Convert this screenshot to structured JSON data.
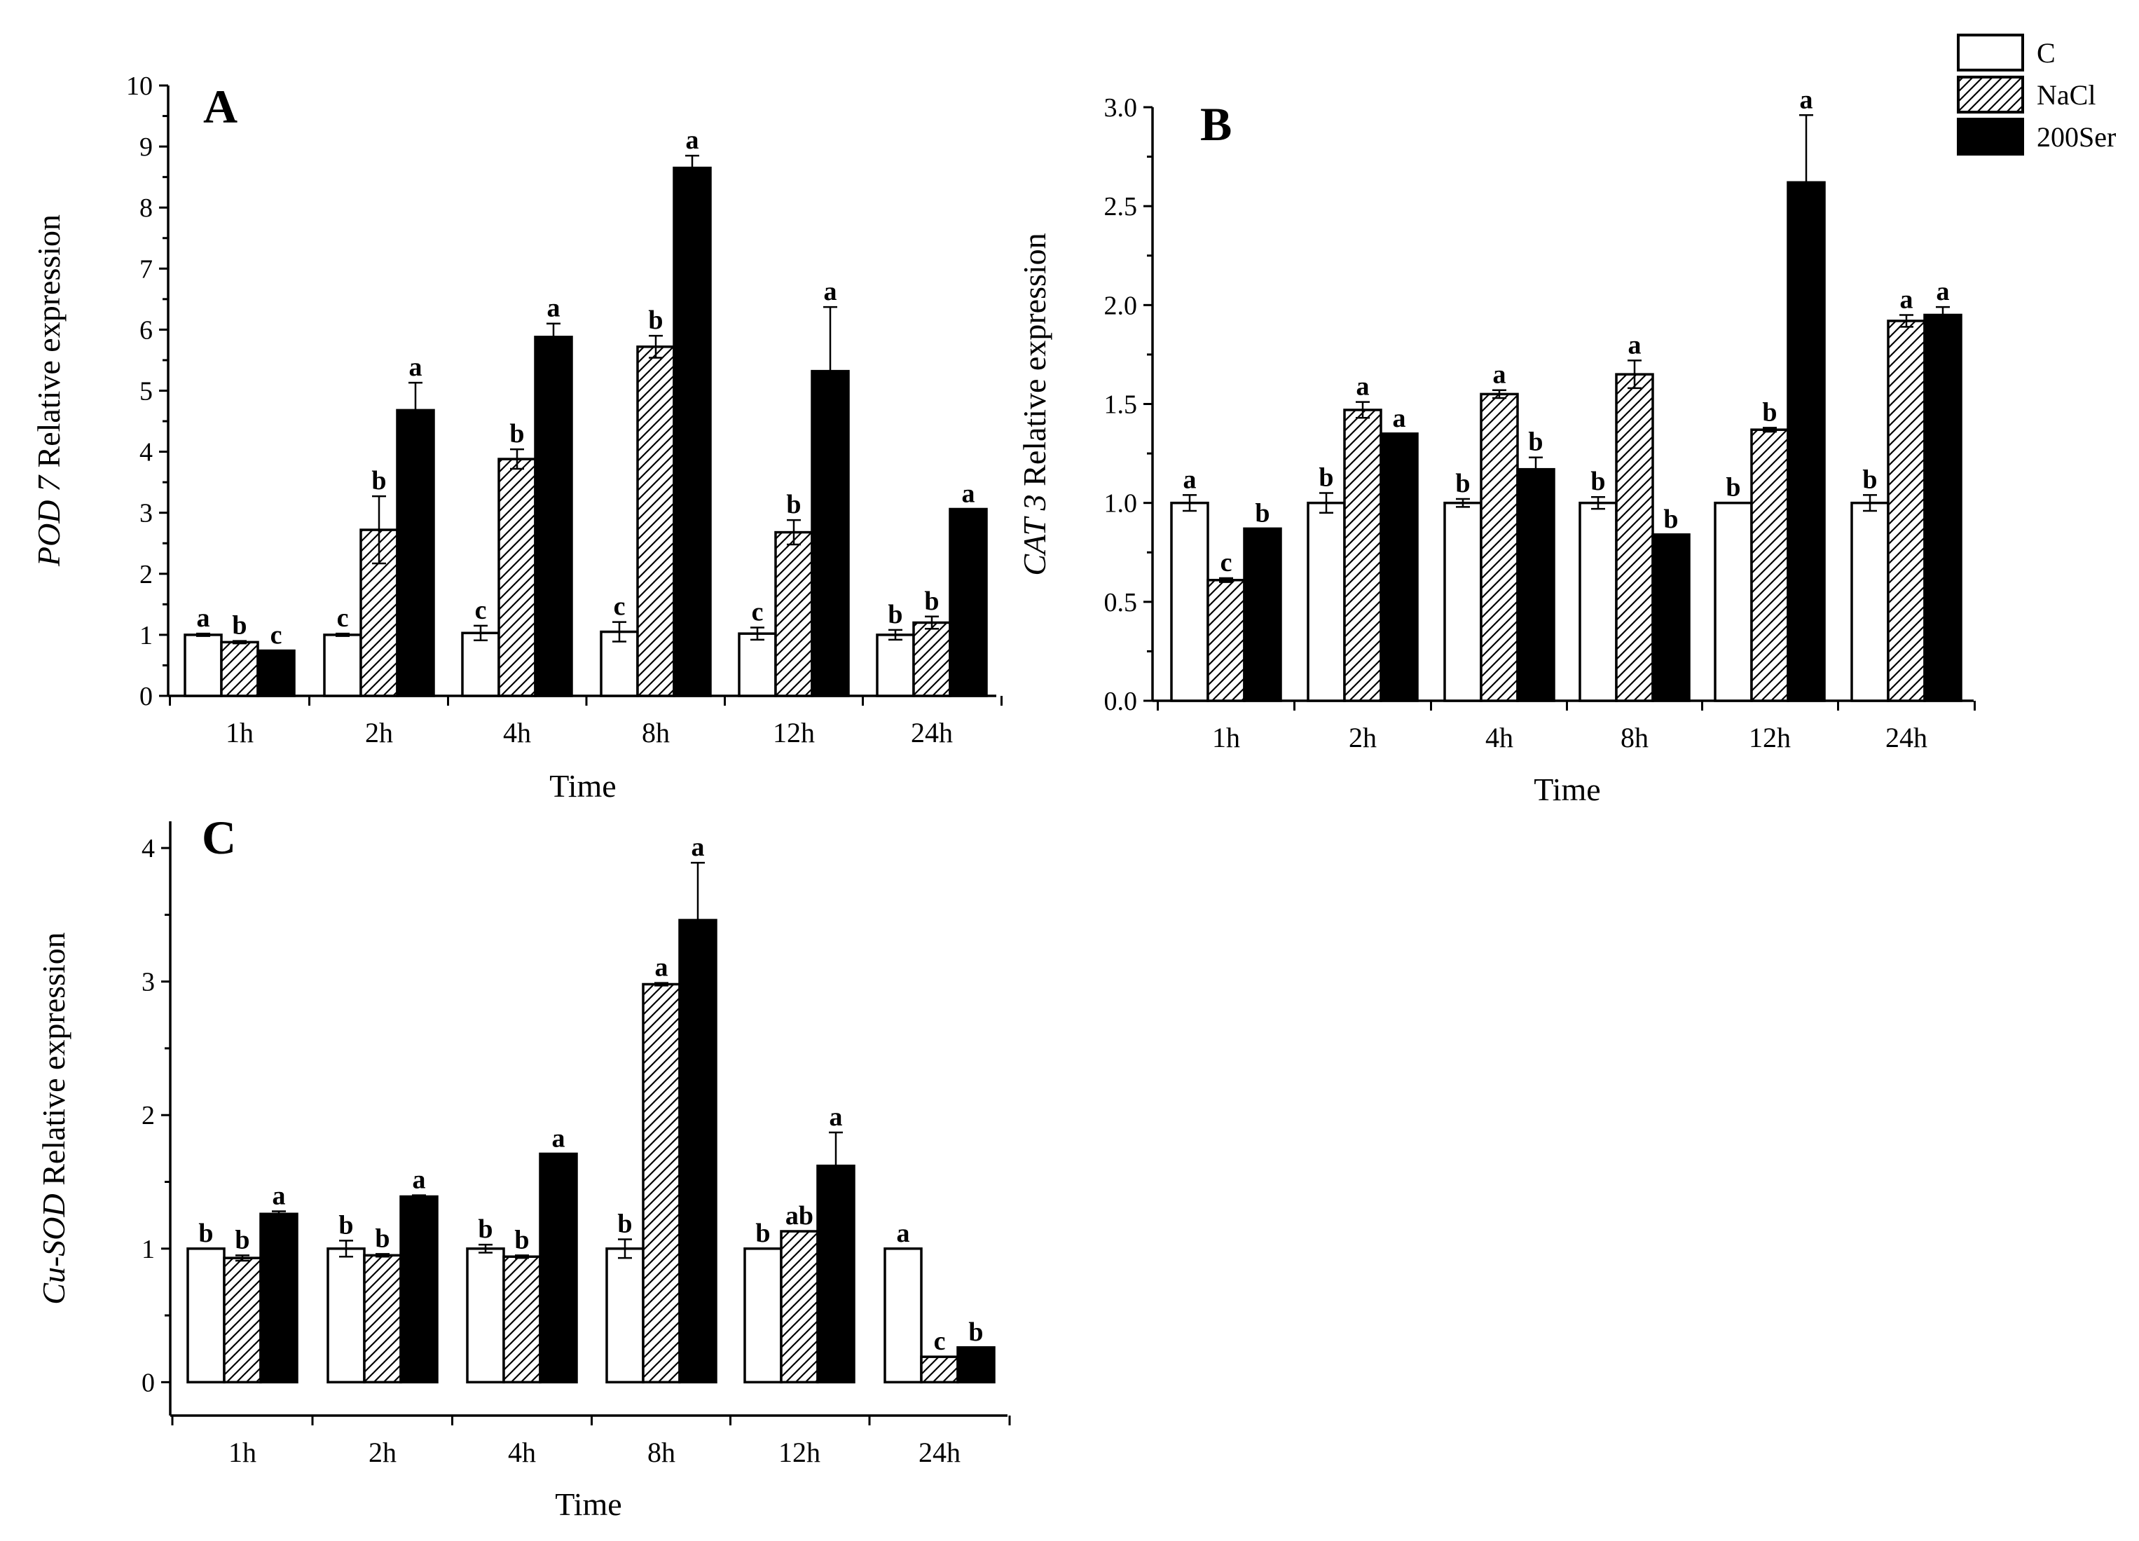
{
  "chart_data": {
    "type": "bar",
    "legend": {
      "position": "top-right",
      "entries": [
        {
          "name": "C",
          "pattern": "white",
          "color": "#ffffff"
        },
        {
          "name": "NaCl",
          "pattern": "hatched",
          "color": "#ffffff"
        },
        {
          "name": "200Ser",
          "pattern": "solid",
          "color": "#000000"
        }
      ]
    },
    "panels": [
      {
        "id": "A",
        "label": "A",
        "gene": "POD 7",
        "ylabel_suffix": " Relative expression",
        "xlabel": "Time",
        "categories": [
          "1h",
          "2h",
          "4h",
          "8h",
          "12h",
          "24h"
        ],
        "ylim": [
          0,
          10
        ],
        "yticks": [
          "0",
          "1",
          "2",
          "3",
          "4",
          "5",
          "6",
          "7",
          "8",
          "9",
          "10"
        ],
        "series": [
          {
            "name": "C",
            "values": [
              1.0,
              1.0,
              1.03,
              1.05,
              1.02,
              1.0
            ],
            "errors": [
              0.02,
              0.02,
              0.12,
              0.16,
              0.1,
              0.08
            ],
            "labels": [
              "a",
              "c",
              "c",
              "c",
              "c",
              "b"
            ]
          },
          {
            "name": "NaCl",
            "values": [
              0.88,
              2.72,
              3.88,
              5.72,
              2.68,
              1.2
            ],
            "errors": [
              0.02,
              0.55,
              0.16,
              0.18,
              0.2,
              0.1
            ],
            "labels": [
              "b",
              "b",
              "b",
              "b",
              "b",
              "b"
            ]
          },
          {
            "name": "200Ser",
            "values": [
              0.74,
              4.68,
              5.88,
              8.65,
              5.32,
              3.06
            ],
            "errors": [
              0.0,
              0.45,
              0.22,
              0.2,
              1.05,
              0.0
            ],
            "labels": [
              "c",
              "a",
              "a",
              "a",
              "a",
              "a"
            ]
          }
        ]
      },
      {
        "id": "B",
        "label": "B",
        "gene": "CAT 3",
        "ylabel_suffix": " Relative expression",
        "xlabel": "Time",
        "categories": [
          "1h",
          "2h",
          "4h",
          "8h",
          "12h",
          "24h"
        ],
        "ylim": [
          0,
          3.0
        ],
        "yticks": [
          "0.0",
          "0.5",
          "1.0",
          "1.5",
          "2.0",
          "2.5",
          "3.0"
        ],
        "series": [
          {
            "name": "C",
            "values": [
              1.0,
              1.0,
              1.0,
              1.0,
              1.0,
              1.0
            ],
            "errors": [
              0.04,
              0.05,
              0.02,
              0.03,
              0.0,
              0.04
            ],
            "labels": [
              "a",
              "b",
              "b",
              "b",
              "b",
              "b"
            ]
          },
          {
            "name": "NaCl",
            "values": [
              0.61,
              1.47,
              1.55,
              1.65,
              1.37,
              1.92
            ],
            "errors": [
              0.01,
              0.04,
              0.02,
              0.07,
              0.01,
              0.03
            ],
            "labels": [
              "c",
              "a",
              "a",
              "a",
              "b",
              "a"
            ]
          },
          {
            "name": "200Ser",
            "values": [
              0.87,
              1.35,
              1.17,
              0.84,
              2.62,
              1.95
            ],
            "errors": [
              0.0,
              0.0,
              0.06,
              0.0,
              0.34,
              0.04
            ],
            "labels": [
              "b",
              "a",
              "b",
              "b",
              "a",
              "a"
            ]
          }
        ]
      },
      {
        "id": "C",
        "label": "C",
        "gene": "Cu-SOD",
        "ylabel_suffix": " Relative expression",
        "xlabel": "Time",
        "categories": [
          "1h",
          "2h",
          "4h",
          "8h",
          "12h",
          "24h"
        ],
        "ylim": [
          -0.25,
          4.2
        ],
        "yticks": [
          "0",
          "1",
          "2",
          "3",
          "4"
        ],
        "series": [
          {
            "name": "C",
            "values": [
              1.0,
              1.0,
              1.0,
              1.0,
              1.0,
              1.0
            ],
            "errors": [
              0.0,
              0.06,
              0.03,
              0.07,
              0.0,
              0.0
            ],
            "labels": [
              "b",
              "b",
              "b",
              "b",
              "b",
              "a"
            ]
          },
          {
            "name": "NaCl",
            "values": [
              0.93,
              0.95,
              0.94,
              2.98,
              1.13,
              0.19
            ],
            "errors": [
              0.02,
              0.01,
              0.01,
              0.01,
              0.0,
              0.0
            ],
            "labels": [
              "b",
              "b",
              "b",
              "a",
              "ab",
              "c"
            ]
          },
          {
            "name": "200Ser",
            "values": [
              1.26,
              1.39,
              1.71,
              3.46,
              1.62,
              0.26
            ],
            "errors": [
              0.02,
              0.01,
              0.0,
              0.43,
              0.25,
              0.0
            ],
            "labels": [
              "a",
              "a",
              "a",
              "a",
              "a",
              "b"
            ]
          }
        ]
      }
    ]
  }
}
